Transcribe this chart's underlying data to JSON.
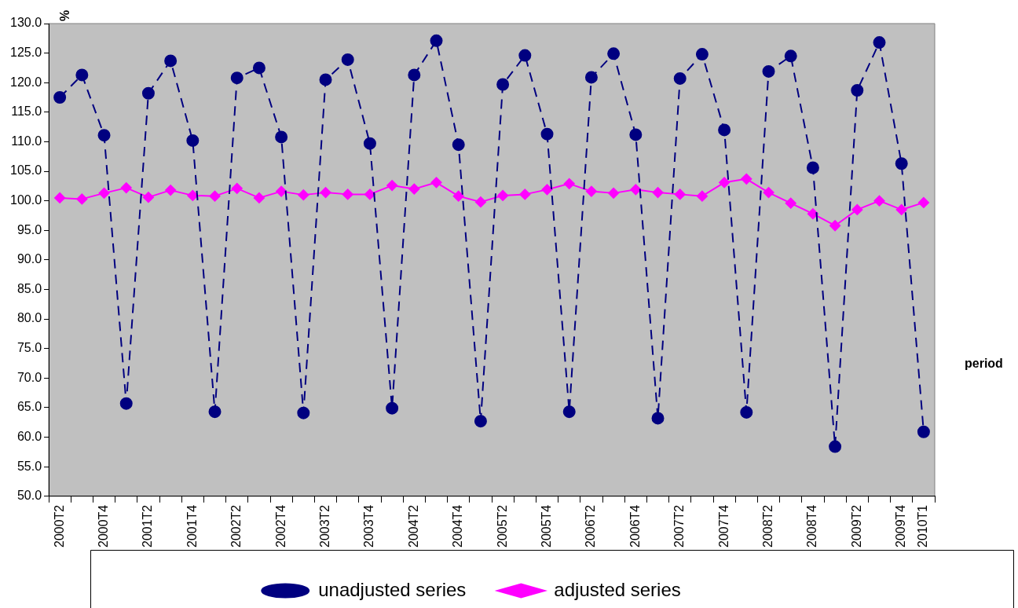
{
  "chart_data": {
    "type": "line",
    "xlabel": "period",
    "ylabel": "%",
    "categories": [
      "2000T2",
      null,
      "2000T4",
      null,
      "2001T2",
      null,
      "2001T4",
      null,
      "2002T2",
      null,
      "2002T4",
      null,
      "2003T2",
      null,
      "2003T4",
      null,
      "2004T2",
      null,
      "2004T4",
      null,
      "2005T2",
      null,
      "2005T4",
      null,
      "2006T2",
      null,
      "2006T4",
      null,
      "2007T2",
      null,
      "2007T4",
      null,
      "2008T2",
      null,
      "2008T4",
      null,
      "2009T2",
      null,
      "2009T4",
      "2010T1"
    ],
    "series": [
      {
        "name": "unadjusted series",
        "color": "#000080",
        "marker": "circle",
        "line_style": "dashed",
        "values": [
          117.5,
          121.3,
          111.1,
          65.7,
          118.2,
          123.7,
          110.2,
          64.3,
          120.8,
          122.5,
          110.8,
          64.1,
          120.5,
          123.9,
          109.7,
          64.9,
          121.3,
          127.1,
          109.5,
          62.7,
          119.7,
          124.6,
          111.3,
          64.3,
          120.9,
          124.9,
          111.2,
          63.2,
          120.7,
          124.8,
          112.0,
          64.2,
          121.9,
          124.5,
          105.6,
          58.4,
          118.7,
          126.8,
          106.3,
          60.9
        ]
      },
      {
        "name": "adjusted series",
        "color": "#ff00ff",
        "marker": "diamond",
        "line_style": "solid",
        "values": [
          100.5,
          100.3,
          101.3,
          102.2,
          100.6,
          101.8,
          100.9,
          100.8,
          102.1,
          100.5,
          101.6,
          101.0,
          101.4,
          101.1,
          101.1,
          102.6,
          102.0,
          103.1,
          100.8,
          99.8,
          100.9,
          101.1,
          101.9,
          102.9,
          101.6,
          101.3,
          101.9,
          101.4,
          101.1,
          100.8,
          103.1,
          103.7,
          101.4,
          99.6,
          97.8,
          95.8,
          98.5,
          100.0,
          98.5,
          99.7
        ]
      }
    ],
    "ylim": [
      50,
      130
    ],
    "yticks": [
      {
        "value": 50,
        "label": "50.0"
      },
      {
        "value": 55,
        "label": "55.0"
      },
      {
        "value": 60,
        "label": "60.0"
      },
      {
        "value": 65,
        "label": "65.0"
      },
      {
        "value": 70,
        "label": "70.0"
      },
      {
        "value": 75,
        "label": "75.0"
      },
      {
        "value": 80,
        "label": "80.0"
      },
      {
        "value": 85,
        "label": "85.0"
      },
      {
        "value": 90,
        "label": "90.0"
      },
      {
        "value": 95,
        "label": "95.0"
      },
      {
        "value": 100,
        "label": "100.0"
      },
      {
        "value": 105,
        "label": "105.0"
      },
      {
        "value": 110,
        "label": "110.0"
      },
      {
        "value": 115,
        "label": "115.0"
      },
      {
        "value": 120,
        "label": "120.0"
      },
      {
        "value": 125,
        "label": "125.0"
      },
      {
        "value": 130,
        "label": "130.0"
      }
    ],
    "grid": false,
    "legend": "bottom"
  }
}
